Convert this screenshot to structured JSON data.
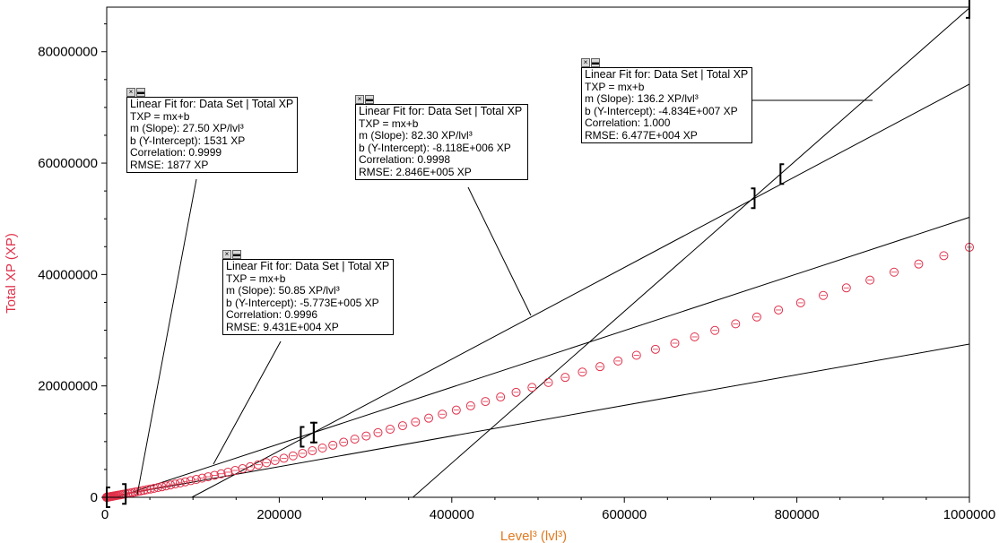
{
  "chart_data": {
    "type": "scatter",
    "xlabel": "Level³ (lvl³)",
    "ylabel": "Total XP (XP)",
    "xlim": [
      0,
      1000000
    ],
    "ylim": [
      0,
      88000000
    ],
    "x_ticks": [
      "0",
      "200000",
      "400000",
      "600000",
      "800000",
      "1000000"
    ],
    "y_ticks": [
      "0",
      "20000000",
      "40000000",
      "60000000",
      "80000000"
    ],
    "grid": false,
    "colors": {
      "points": "#e0304a",
      "axis_title_y": "#e0304a",
      "axis_title_x": "#e07a20",
      "fit_lines": "#000000"
    },
    "series": [
      {
        "marker": "circle",
        "points": [
          [
            1,
            0
          ],
          [
            8,
            220
          ],
          [
            27,
            1000
          ],
          [
            64,
            2600
          ],
          [
            125,
            4800
          ],
          [
            216,
            6600
          ],
          [
            343,
            9600
          ],
          [
            512,
            15000
          ],
          [
            729,
            22000
          ],
          [
            1000,
            30000
          ],
          [
            1331,
            40000
          ],
          [
            1728,
            50000
          ],
          [
            2197,
            62000
          ],
          [
            2744,
            80000
          ],
          [
            3375,
            100000
          ],
          [
            4096,
            120000
          ],
          [
            4913,
            140000
          ],
          [
            5832,
            170000
          ],
          [
            6859,
            200000
          ],
          [
            8000,
            230000
          ],
          [
            9261,
            270000
          ],
          [
            10648,
            310000
          ],
          [
            12167,
            350000
          ],
          [
            13824,
            400000
          ],
          [
            15625,
            450000
          ],
          [
            17576,
            500000
          ],
          [
            19683,
            560000
          ],
          [
            21952,
            620000
          ],
          [
            24389,
            700000
          ],
          [
            27000,
            770000
          ],
          [
            29791,
            850000
          ],
          [
            32768,
            940000
          ],
          [
            35937,
            1030000
          ],
          [
            39304,
            1130000
          ],
          [
            42875,
            1240000
          ],
          [
            46656,
            1360000
          ],
          [
            50653,
            1480000
          ],
          [
            54872,
            1610000
          ],
          [
            59319,
            1750000
          ],
          [
            64000,
            1900000
          ],
          [
            68921,
            2050000
          ],
          [
            74088,
            2220000
          ],
          [
            79507,
            2400000
          ],
          [
            85184,
            2580000
          ],
          [
            91125,
            2780000
          ],
          [
            97336,
            2990000
          ],
          [
            103823,
            3210000
          ],
          [
            110592,
            3440000
          ],
          [
            117649,
            3690000
          ],
          [
            125000,
            3950000
          ],
          [
            132651,
            4220000
          ],
          [
            140608,
            4510000
          ],
          [
            148877,
            4820000
          ],
          [
            157464,
            5140000
          ],
          [
            166375,
            5480000
          ],
          [
            175616,
            5840000
          ],
          [
            185193,
            6210000
          ],
          [
            195112,
            6600000
          ],
          [
            205379,
            7010000
          ],
          [
            216000,
            7440000
          ],
          [
            226981,
            7890000
          ],
          [
            238328,
            8360000
          ],
          [
            250047,
            8850000
          ],
          [
            262144,
            9360000
          ],
          [
            274625,
            9890000
          ],
          [
            287496,
            10440000
          ],
          [
            300763,
            11010000
          ],
          [
            314432,
            11610000
          ],
          [
            328509,
            12220000
          ],
          [
            343000,
            12860000
          ],
          [
            357911,
            13520000
          ],
          [
            373248,
            14210000
          ],
          [
            389017,
            14920000
          ],
          [
            405224,
            15660000
          ],
          [
            421875,
            16420000
          ],
          [
            438976,
            17200000
          ],
          [
            456533,
            18010000
          ],
          [
            474552,
            18850000
          ],
          [
            493039,
            19720000
          ],
          [
            512000,
            20610000
          ],
          [
            531441,
            21530000
          ],
          [
            551368,
            22480000
          ],
          [
            571787,
            23460000
          ],
          [
            592704,
            24470000
          ],
          [
            614125,
            25500000
          ],
          [
            636056,
            26570000
          ],
          [
            658503,
            27670000
          ],
          [
            681472,
            28800000
          ],
          [
            704969,
            29960000
          ],
          [
            729000,
            31150000
          ],
          [
            753571,
            32370000
          ],
          [
            778688,
            33630000
          ],
          [
            804357,
            34920000
          ],
          [
            830584,
            36240000
          ],
          [
            857375,
            37600000
          ],
          [
            884736,
            38990000
          ],
          [
            912673,
            40420000
          ],
          [
            941192,
            41880000
          ],
          [
            970299,
            43380000
          ],
          [
            1000000,
            44900000
          ]
        ]
      }
    ],
    "fits": [
      {
        "title": "Linear Fit for: Data Set | Total XP",
        "eq": "TXP = mx+b",
        "m": "m (Slope): 27.50 XP/lvl³",
        "b": "b (Y-Intercept): 1531 XP",
        "corr": "Correlation: 0.9999",
        "rmse": "RMSE: 1877 XP",
        "slope": 27.5,
        "intercept": 1531,
        "x_range": [
          0,
          22000
        ]
      },
      {
        "title": "Linear Fit for: Data Set | Total XP",
        "eq": "TXP = mx+b",
        "m": "m (Slope): 50.85 XP/lvl³",
        "b": "b (Y-Intercept): -5.773E+005 XP",
        "corr": "Correlation: 0.9996",
        "rmse": "RMSE: 9.431E+004 XP",
        "slope": 50.85,
        "intercept": -577300,
        "x_range": [
          225000,
          240000
        ]
      },
      {
        "title": "Linear Fit for: Data Set | Total XP",
        "eq": "TXP = mx+b",
        "m": "m (Slope): 82.30 XP/lvl³",
        "b": "b (Y-Intercept): -8.118E+006 XP",
        "corr": "Correlation: 0.9998",
        "rmse": "RMSE: 2.846E+005 XP",
        "slope": 82.3,
        "intercept": -8118000,
        "x_range": [
          240000,
          751000
        ]
      },
      {
        "title": "Linear Fit for: Data Set | Total XP",
        "eq": "TXP = mx+b",
        "m": "m (Slope): 136.2 XP/lvl³",
        "b": "b (Y-Intercept): -4.834E+007 XP",
        "corr": "Correlation: 1.000",
        "rmse": "RMSE: 6.477E+004 XP",
        "slope": 136.2,
        "intercept": -48340000,
        "x_range": [
          781000,
          1000000
        ]
      }
    ]
  }
}
